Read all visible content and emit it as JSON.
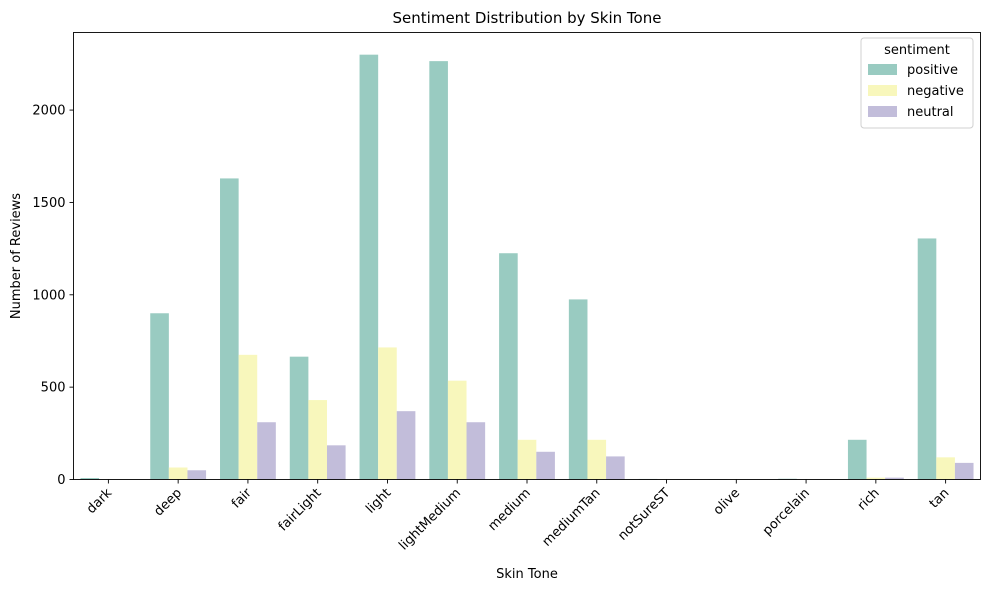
{
  "chart_data": {
    "type": "bar",
    "title": "Sentiment Distribution by Skin Tone",
    "xlabel": "Skin Tone",
    "ylabel": "Number of Reviews",
    "ylim": [
      0,
      2420
    ],
    "yticks": [
      0,
      500,
      1000,
      1500,
      2000
    ],
    "grid": false,
    "legend_title": "sentiment",
    "legend_position": "top-right",
    "categories": [
      "dark",
      "deep",
      "fair",
      "fairLight",
      "light",
      "lightMedium",
      "medium",
      "mediumTan",
      "notSureST",
      "olive",
      "porcelain",
      "rich",
      "tan"
    ],
    "series": [
      {
        "name": "positive",
        "color": "#99cbc1",
        "values": [
          8,
          900,
          1630,
          665,
          2300,
          2265,
          1225,
          975,
          3,
          2,
          4,
          215,
          1305
        ]
      },
      {
        "name": "negative",
        "color": "#f8f7bc",
        "values": [
          0,
          65,
          675,
          430,
          715,
          535,
          215,
          215,
          1,
          1,
          1,
          10,
          120
        ]
      },
      {
        "name": "neutral",
        "color": "#c2bdda",
        "values": [
          0,
          50,
          310,
          185,
          370,
          310,
          150,
          125,
          1,
          0,
          1,
          10,
          90
        ]
      }
    ]
  }
}
